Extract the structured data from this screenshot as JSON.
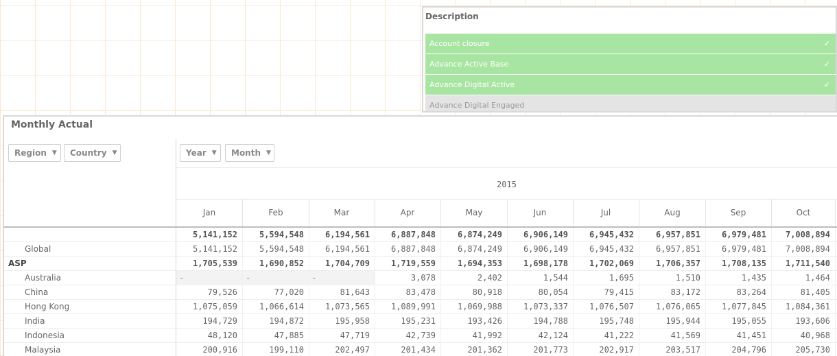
{
  "description": {
    "title": "Description",
    "items": [
      {
        "label": "Account closure",
        "state": "selected"
      },
      {
        "label": "Advance Active Base",
        "state": "selected"
      },
      {
        "label": "Advance Digital Active",
        "state": "selected"
      },
      {
        "label": "Advance Digital Engaged",
        "state": "excluded"
      }
    ],
    "check_glyph": "✓"
  },
  "pivot": {
    "title": "Monthly Actual",
    "dimensions": [
      {
        "label": "Region"
      },
      {
        "label": "Country"
      },
      {
        "label": "Year"
      },
      {
        "label": "Month"
      }
    ],
    "caret": "▼",
    "year": "2015",
    "months": [
      "Jan",
      "Feb",
      "Mar",
      "Apr",
      "May",
      "Jun",
      "Jul",
      "Aug",
      "Sep",
      "Oct"
    ],
    "null_symbol": "-",
    "rows": [
      {
        "label": "",
        "level": "total",
        "values": [
          "5,141,152",
          "5,594,548",
          "6,194,561",
          "6,887,848",
          "6,874,249",
          "6,906,149",
          "6,945,432",
          "6,957,851",
          "6,979,481",
          "7,008,894"
        ]
      },
      {
        "label": "Global",
        "level": "child",
        "values": [
          "5,141,152",
          "5,594,548",
          "6,194,561",
          "6,887,848",
          "6,874,249",
          "6,906,149",
          "6,945,432",
          "6,957,851",
          "6,979,481",
          "7,008,894"
        ]
      },
      {
        "label": "ASP",
        "level": "region",
        "values": [
          "1,705,539",
          "1,690,852",
          "1,704,709",
          "1,719,559",
          "1,694,353",
          "1,698,178",
          "1,702,069",
          "1,706,357",
          "1,708,135",
          "1,711,540"
        ]
      },
      {
        "label": "Australia",
        "level": "child",
        "values": [
          "-",
          "-",
          "-",
          "3,078",
          "2,402",
          "1,544",
          "1,695",
          "1,510",
          "1,435",
          "1,464"
        ]
      },
      {
        "label": "China",
        "level": "child",
        "values": [
          "79,526",
          "77,020",
          "81,643",
          "83,478",
          "80,918",
          "80,054",
          "79,415",
          "83,172",
          "83,264",
          "81,405"
        ]
      },
      {
        "label": "Hong Kong",
        "level": "child",
        "values": [
          "1,075,059",
          "1,066,614",
          "1,073,565",
          "1,089,991",
          "1,069,988",
          "1,073,337",
          "1,076,507",
          "1,076,065",
          "1,077,845",
          "1,084,361"
        ]
      },
      {
        "label": "India",
        "level": "child",
        "values": [
          "194,729",
          "194,872",
          "195,958",
          "195,231",
          "193,426",
          "194,788",
          "195,748",
          "195,944",
          "195,055",
          "193,606"
        ]
      },
      {
        "label": "Indonesia",
        "level": "child",
        "values": [
          "48,120",
          "47,885",
          "47,719",
          "42,739",
          "41,992",
          "42,124",
          "41,222",
          "41,569",
          "41,451",
          "40,968"
        ]
      },
      {
        "label": "Malaysia",
        "level": "child",
        "values": [
          "200,916",
          "199,110",
          "202,497",
          "201,434",
          "201,362",
          "201,773",
          "202,917",
          "203,517",
          "204,796",
          "205,730"
        ]
      }
    ]
  }
}
